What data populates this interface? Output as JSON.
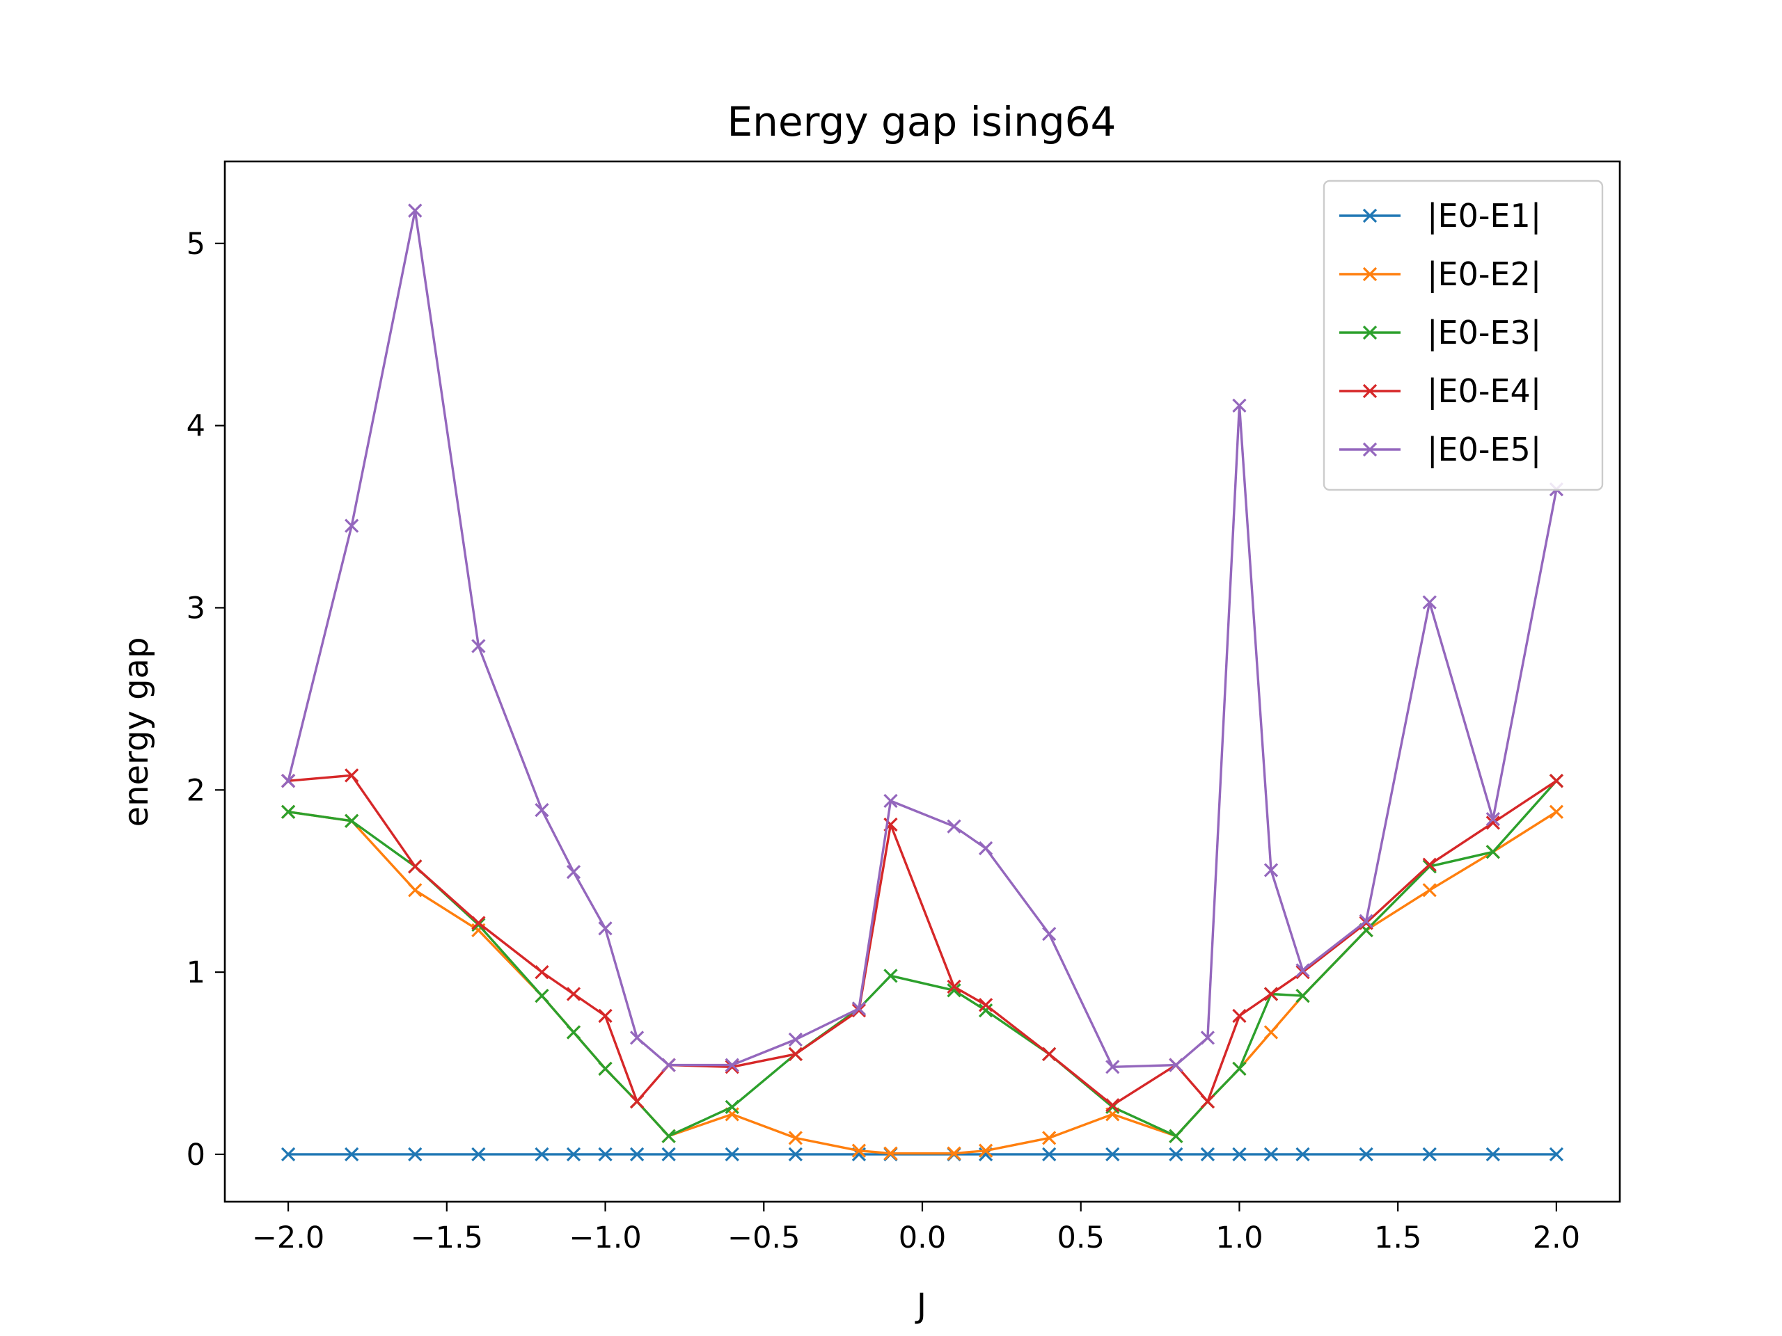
{
  "chart_data": {
    "type": "line",
    "title": "Energy gap ising64",
    "xlabel": "J",
    "ylabel": "energy gap",
    "xlim": [
      -2.2,
      2.2
    ],
    "ylim": [
      -0.26,
      5.45
    ],
    "xticks": [
      -2.0,
      -1.5,
      -1.0,
      -0.5,
      0.0,
      0.5,
      1.0,
      1.5,
      2.0
    ],
    "xtick_labels": [
      "−2.0",
      "−1.5",
      "−1.0",
      "−0.5",
      "0.0",
      "0.5",
      "1.0",
      "1.5",
      "2.0"
    ],
    "yticks": [
      0,
      1,
      2,
      3,
      4,
      5
    ],
    "ytick_labels": [
      "0",
      "1",
      "2",
      "3",
      "4",
      "5"
    ],
    "grid": false,
    "legend_position": "top-right",
    "marker": "x",
    "x": [
      -2.0,
      -1.8,
      -1.6,
      -1.4,
      -1.2,
      -1.1,
      -1.0,
      -0.9,
      -0.8,
      -0.6,
      -0.4,
      -0.2,
      -0.1,
      0.1,
      0.2,
      0.4,
      0.6,
      0.8,
      0.9,
      1.0,
      1.1,
      1.2,
      1.4,
      1.6,
      1.8,
      2.0
    ],
    "series": [
      {
        "name": "|E0-E1|",
        "color": "#1f77b4",
        "values": [
          0,
          0,
          0,
          0,
          0,
          0,
          0,
          0,
          0,
          0,
          0,
          0,
          0,
          0,
          0,
          0,
          0,
          0,
          0,
          0,
          0,
          0,
          0,
          0,
          0,
          0
        ]
      },
      {
        "name": "|E0-E2|",
        "color": "#ff7f0e",
        "values": [
          1.88,
          1.83,
          1.45,
          1.23,
          0.87,
          0.67,
          0.47,
          0.29,
          0.1,
          0.22,
          0.09,
          0.02,
          0.005,
          0.005,
          0.02,
          0.09,
          0.22,
          0.1,
          0.29,
          0.47,
          0.67,
          0.87,
          1.23,
          1.45,
          1.66,
          1.88
        ]
      },
      {
        "name": "|E0-E3|",
        "color": "#2ca02c",
        "values": [
          1.88,
          1.83,
          1.58,
          1.26,
          0.87,
          0.67,
          0.47,
          0.29,
          0.1,
          0.26,
          0.55,
          0.8,
          0.98,
          0.9,
          0.79,
          0.55,
          0.26,
          0.1,
          0.29,
          0.47,
          0.88,
          0.87,
          1.23,
          1.58,
          1.66,
          2.05
        ]
      },
      {
        "name": "|E0-E4|",
        "color": "#d62728",
        "values": [
          2.05,
          2.08,
          1.58,
          1.27,
          1.0,
          0.88,
          0.76,
          0.29,
          0.49,
          0.48,
          0.55,
          0.79,
          1.81,
          0.92,
          0.82,
          0.55,
          0.27,
          0.49,
          0.29,
          0.76,
          0.88,
          1.0,
          1.27,
          1.59,
          1.82,
          2.05
        ]
      },
      {
        "name": "|E0-E5|",
        "color": "#9467bd",
        "values": [
          2.05,
          3.45,
          5.18,
          2.79,
          1.89,
          1.55,
          1.24,
          0.64,
          0.49,
          0.49,
          0.63,
          0.8,
          1.94,
          1.8,
          1.68,
          1.21,
          0.48,
          0.49,
          0.64,
          4.11,
          1.56,
          1.01,
          1.28,
          3.03,
          1.84,
          3.65
        ]
      }
    ]
  }
}
